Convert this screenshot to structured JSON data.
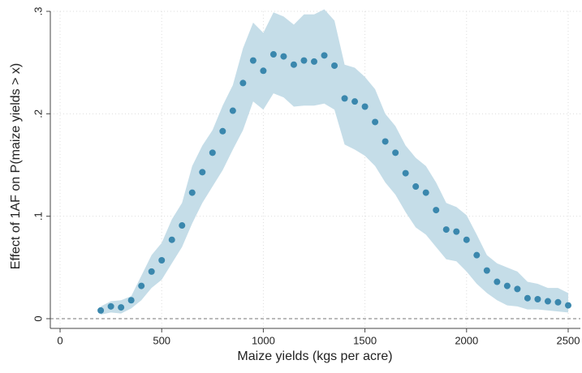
{
  "chart_data": {
    "type": "scatter_band",
    "x_label": "Maize yields (kgs per acre)",
    "y_label": "Effect of 1AF on P(maize yields > x)",
    "x": [
      200,
      250,
      300,
      350,
      400,
      450,
      500,
      550,
      600,
      650,
      700,
      750,
      800,
      850,
      900,
      950,
      1000,
      1050,
      1100,
      1150,
      1200,
      1250,
      1300,
      1350,
      1400,
      1450,
      1500,
      1550,
      1600,
      1650,
      1700,
      1750,
      1800,
      1850,
      1900,
      1950,
      2000,
      2050,
      2100,
      2150,
      2200,
      2250,
      2300,
      2350,
      2400,
      2450,
      2500
    ],
    "values": [
      0.008,
      0.012,
      0.011,
      0.018,
      0.032,
      0.046,
      0.057,
      0.077,
      0.091,
      0.123,
      0.143,
      0.162,
      0.183,
      0.203,
      0.23,
      0.252,
      0.242,
      0.258,
      0.256,
      0.248,
      0.252,
      0.251,
      0.257,
      0.247,
      0.215,
      0.212,
      0.207,
      0.192,
      0.173,
      0.162,
      0.142,
      0.129,
      0.123,
      0.106,
      0.087,
      0.085,
      0.077,
      0.062,
      0.047,
      0.036,
      0.032,
      0.029,
      0.02,
      0.019,
      0.017,
      0.016,
      0.013
    ],
    "ci_upper": [
      0.012,
      0.017,
      0.018,
      0.022,
      0.042,
      0.062,
      0.074,
      0.097,
      0.113,
      0.149,
      0.169,
      0.184,
      0.208,
      0.228,
      0.264,
      0.289,
      0.279,
      0.299,
      0.295,
      0.287,
      0.297,
      0.297,
      0.302,
      0.291,
      0.248,
      0.245,
      0.236,
      0.224,
      0.2,
      0.188,
      0.169,
      0.157,
      0.149,
      0.133,
      0.113,
      0.109,
      0.101,
      0.082,
      0.062,
      0.054,
      0.05,
      0.046,
      0.036,
      0.034,
      0.03,
      0.03,
      0.025
    ],
    "ci_lower": [
      0.004,
      0.006,
      0.005,
      0.01,
      0.018,
      0.03,
      0.038,
      0.054,
      0.07,
      0.093,
      0.113,
      0.129,
      0.145,
      0.165,
      0.184,
      0.212,
      0.204,
      0.22,
      0.216,
      0.207,
      0.208,
      0.208,
      0.21,
      0.204,
      0.17,
      0.165,
      0.159,
      0.149,
      0.133,
      0.121,
      0.104,
      0.089,
      0.082,
      0.07,
      0.058,
      0.056,
      0.046,
      0.034,
      0.025,
      0.018,
      0.013,
      0.012,
      0.009,
      0.009,
      0.008,
      0.007,
      0.006
    ],
    "color": "#3a87ad",
    "band_color": "#c5dde8",
    "xlim": [
      -48,
      2560
    ],
    "ylim": [
      -0.0095,
      0.3
    ],
    "xticks": [
      0,
      500,
      1000,
      1500,
      2000,
      2500
    ],
    "yticks": [
      0,
      {
        "value": 0.1,
        "label": ".1"
      },
      {
        "value": 0.2,
        "label": ".2"
      },
      {
        "value": 0.3,
        "label": ".3"
      }
    ],
    "grid": true,
    "zero_line": true
  }
}
